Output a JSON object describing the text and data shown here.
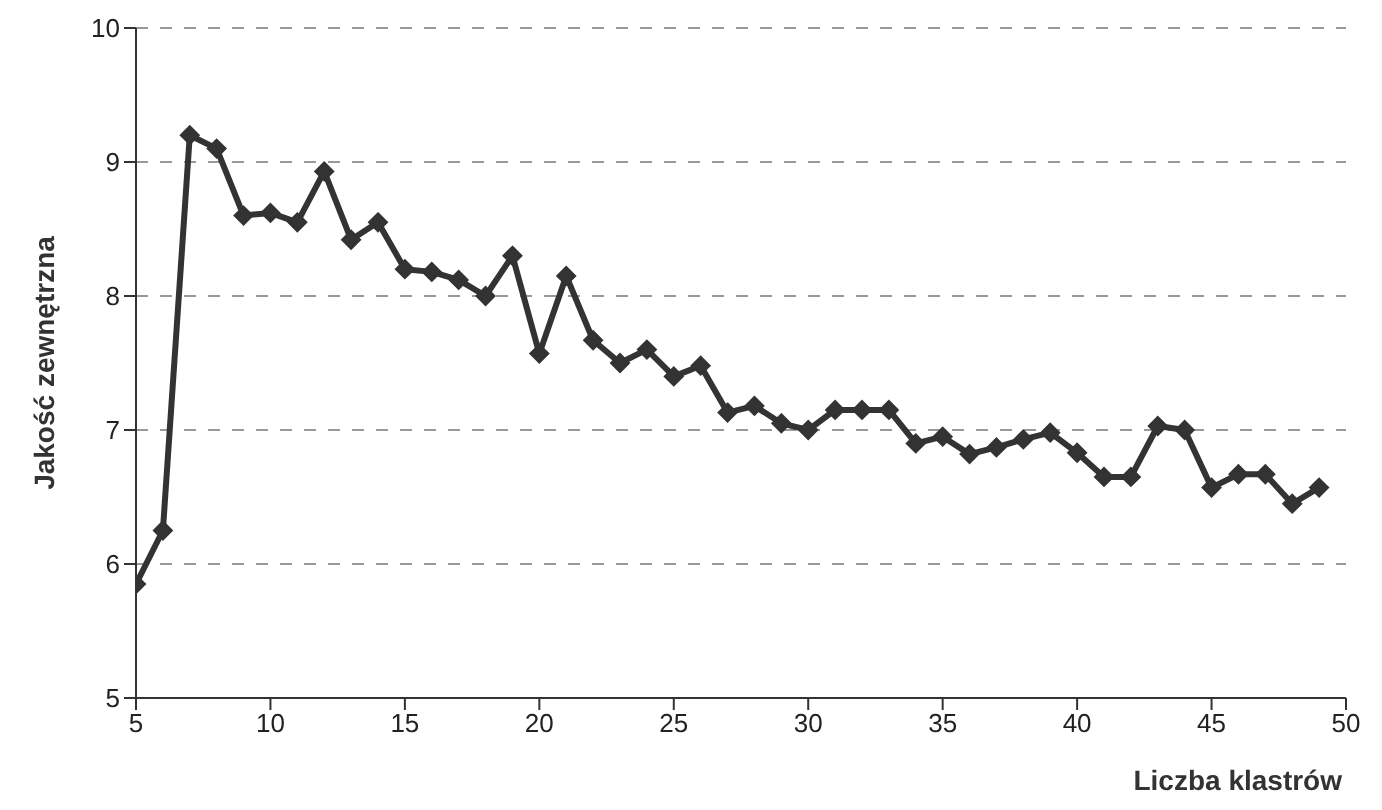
{
  "chart_data": {
    "type": "line",
    "xlabel": "Liczba klastrów",
    "ylabel": "Jakość zewnętrzna",
    "x": [
      5,
      6,
      7,
      8,
      9,
      10,
      11,
      12,
      13,
      14,
      15,
      16,
      17,
      18,
      19,
      20,
      21,
      22,
      23,
      24,
      25,
      26,
      27,
      28,
      29,
      30,
      31,
      32,
      33,
      34,
      35,
      36,
      37,
      38,
      39,
      40,
      41,
      42,
      43,
      44,
      45,
      46,
      47,
      48,
      49
    ],
    "series": [
      {
        "color": "#333333",
        "values": [
          5.85,
          6.25,
          9.2,
          9.1,
          8.6,
          8.62,
          8.55,
          8.93,
          8.42,
          8.55,
          8.2,
          8.18,
          8.12,
          8.0,
          8.3,
          7.57,
          8.15,
          7.67,
          7.5,
          7.6,
          7.4,
          7.48,
          7.13,
          7.18,
          7.05,
          7.0,
          7.15,
          7.15,
          7.15,
          6.9,
          6.95,
          6.82,
          6.87,
          6.93,
          6.98,
          6.83,
          6.65,
          6.65,
          7.03,
          7.0,
          6.57,
          6.67,
          6.67,
          6.45,
          6.57
        ]
      }
    ],
    "xlim": [
      5,
      50
    ],
    "xticks": [
      5,
      10,
      15,
      20,
      25,
      30,
      35,
      40,
      45,
      50
    ],
    "ylim": [
      5,
      10
    ],
    "yticks": [
      5,
      6,
      7,
      8,
      9,
      10
    ],
    "grid": "y",
    "legend": false,
    "marker": "diamond",
    "line_style": "solid"
  }
}
